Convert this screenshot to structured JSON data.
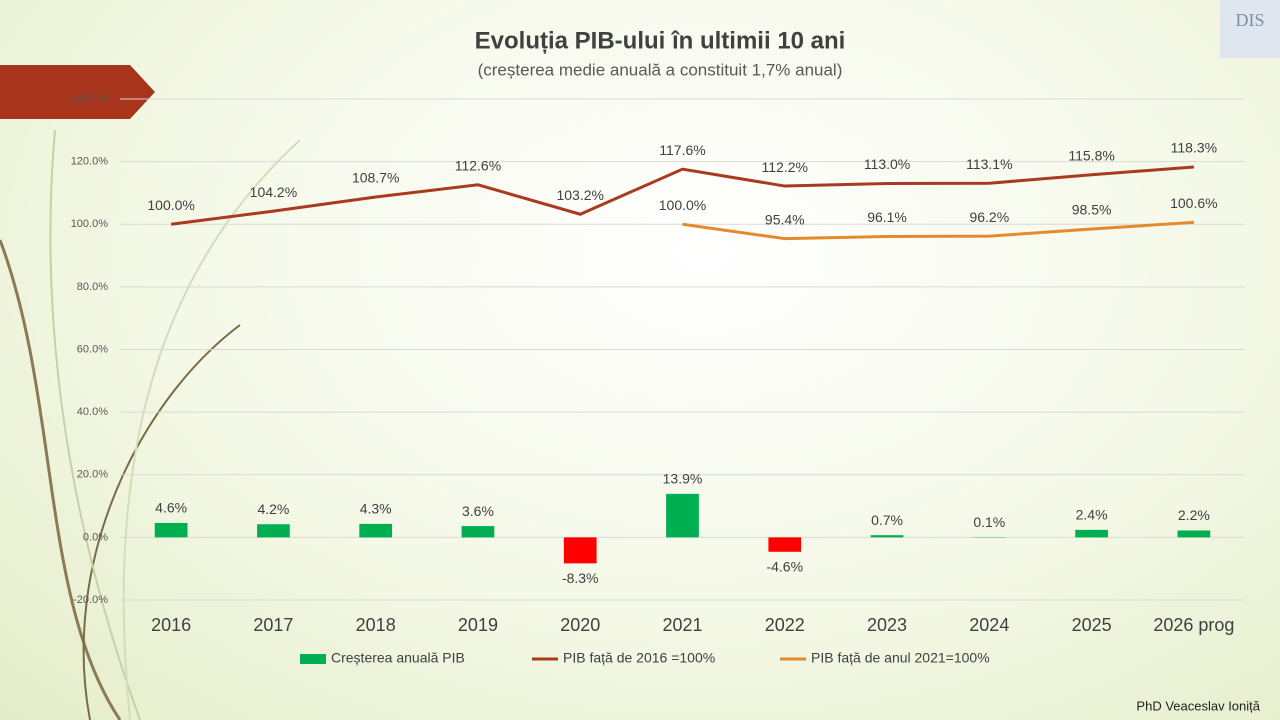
{
  "chart_data": {
    "type": "combo",
    "title": "Evoluția PIB-ului în ultimii 10 ani",
    "subtitle": "(creșterea medie anuală a constituit 1,7% anual)",
    "categories": [
      "2016",
      "2017",
      "2018",
      "2019",
      "2020",
      "2021",
      "2022",
      "2023",
      "2024",
      "2025",
      "2026 prog"
    ],
    "series": [
      {
        "name": "Creșterea anuală PIB",
        "type": "bar",
        "color": "#00b050",
        "negative_color": "#ff0000",
        "values": [
          4.6,
          4.2,
          4.3,
          3.6,
          -8.3,
          13.9,
          -4.6,
          0.7,
          0.1,
          2.4,
          2.2
        ],
        "value_labels": [
          "4.6%",
          "4.2%",
          "4.3%",
          "3.6%",
          "-8.3%",
          "13.9%",
          "-4.6%",
          "0.7%",
          "0.1%",
          "2.4%",
          "2.2%"
        ]
      },
      {
        "name": "PIB față de 2016 =100%",
        "type": "line",
        "color": "#a93a1f",
        "values": [
          100.0,
          104.2,
          108.7,
          112.6,
          103.2,
          117.6,
          112.2,
          113.0,
          113.1,
          115.8,
          118.3
        ],
        "value_labels": [
          "100.0%",
          "104.2%",
          "108.7%",
          "112.6%",
          "103.2%",
          "117.6%",
          "112.2%",
          "113.0%",
          "113.1%",
          "115.8%",
          "118.3%"
        ]
      },
      {
        "name": "PIB față de anul 2021=100%",
        "type": "line",
        "color": "#e38b2c",
        "values": [
          null,
          null,
          null,
          null,
          null,
          100.0,
          95.4,
          96.1,
          96.2,
          98.5,
          100.6
        ],
        "value_labels": [
          null,
          null,
          null,
          null,
          null,
          "100.0%",
          "95.4%",
          "96.1%",
          "96.2%",
          "98.5%",
          "100.6%"
        ]
      }
    ],
    "ylim": [
      -20,
      140
    ],
    "yticks": [
      {
        "value": -20,
        "label": "-20.0%"
      },
      {
        "value": 0,
        "label": "0.0%"
      },
      {
        "value": 20,
        "label": "20.0%"
      },
      {
        "value": 40,
        "label": "40.0%"
      },
      {
        "value": 60,
        "label": "60.0%"
      },
      {
        "value": 80,
        "label": "80.0%"
      },
      {
        "value": 100,
        "label": "100.0%"
      },
      {
        "value": 120,
        "label": "120.0%"
      },
      {
        "value": 140,
        "label": "140.0%"
      }
    ],
    "grid": true,
    "legend": "bottom"
  },
  "logo": "DIS",
  "author": "PhD Veaceslav Ioniță"
}
